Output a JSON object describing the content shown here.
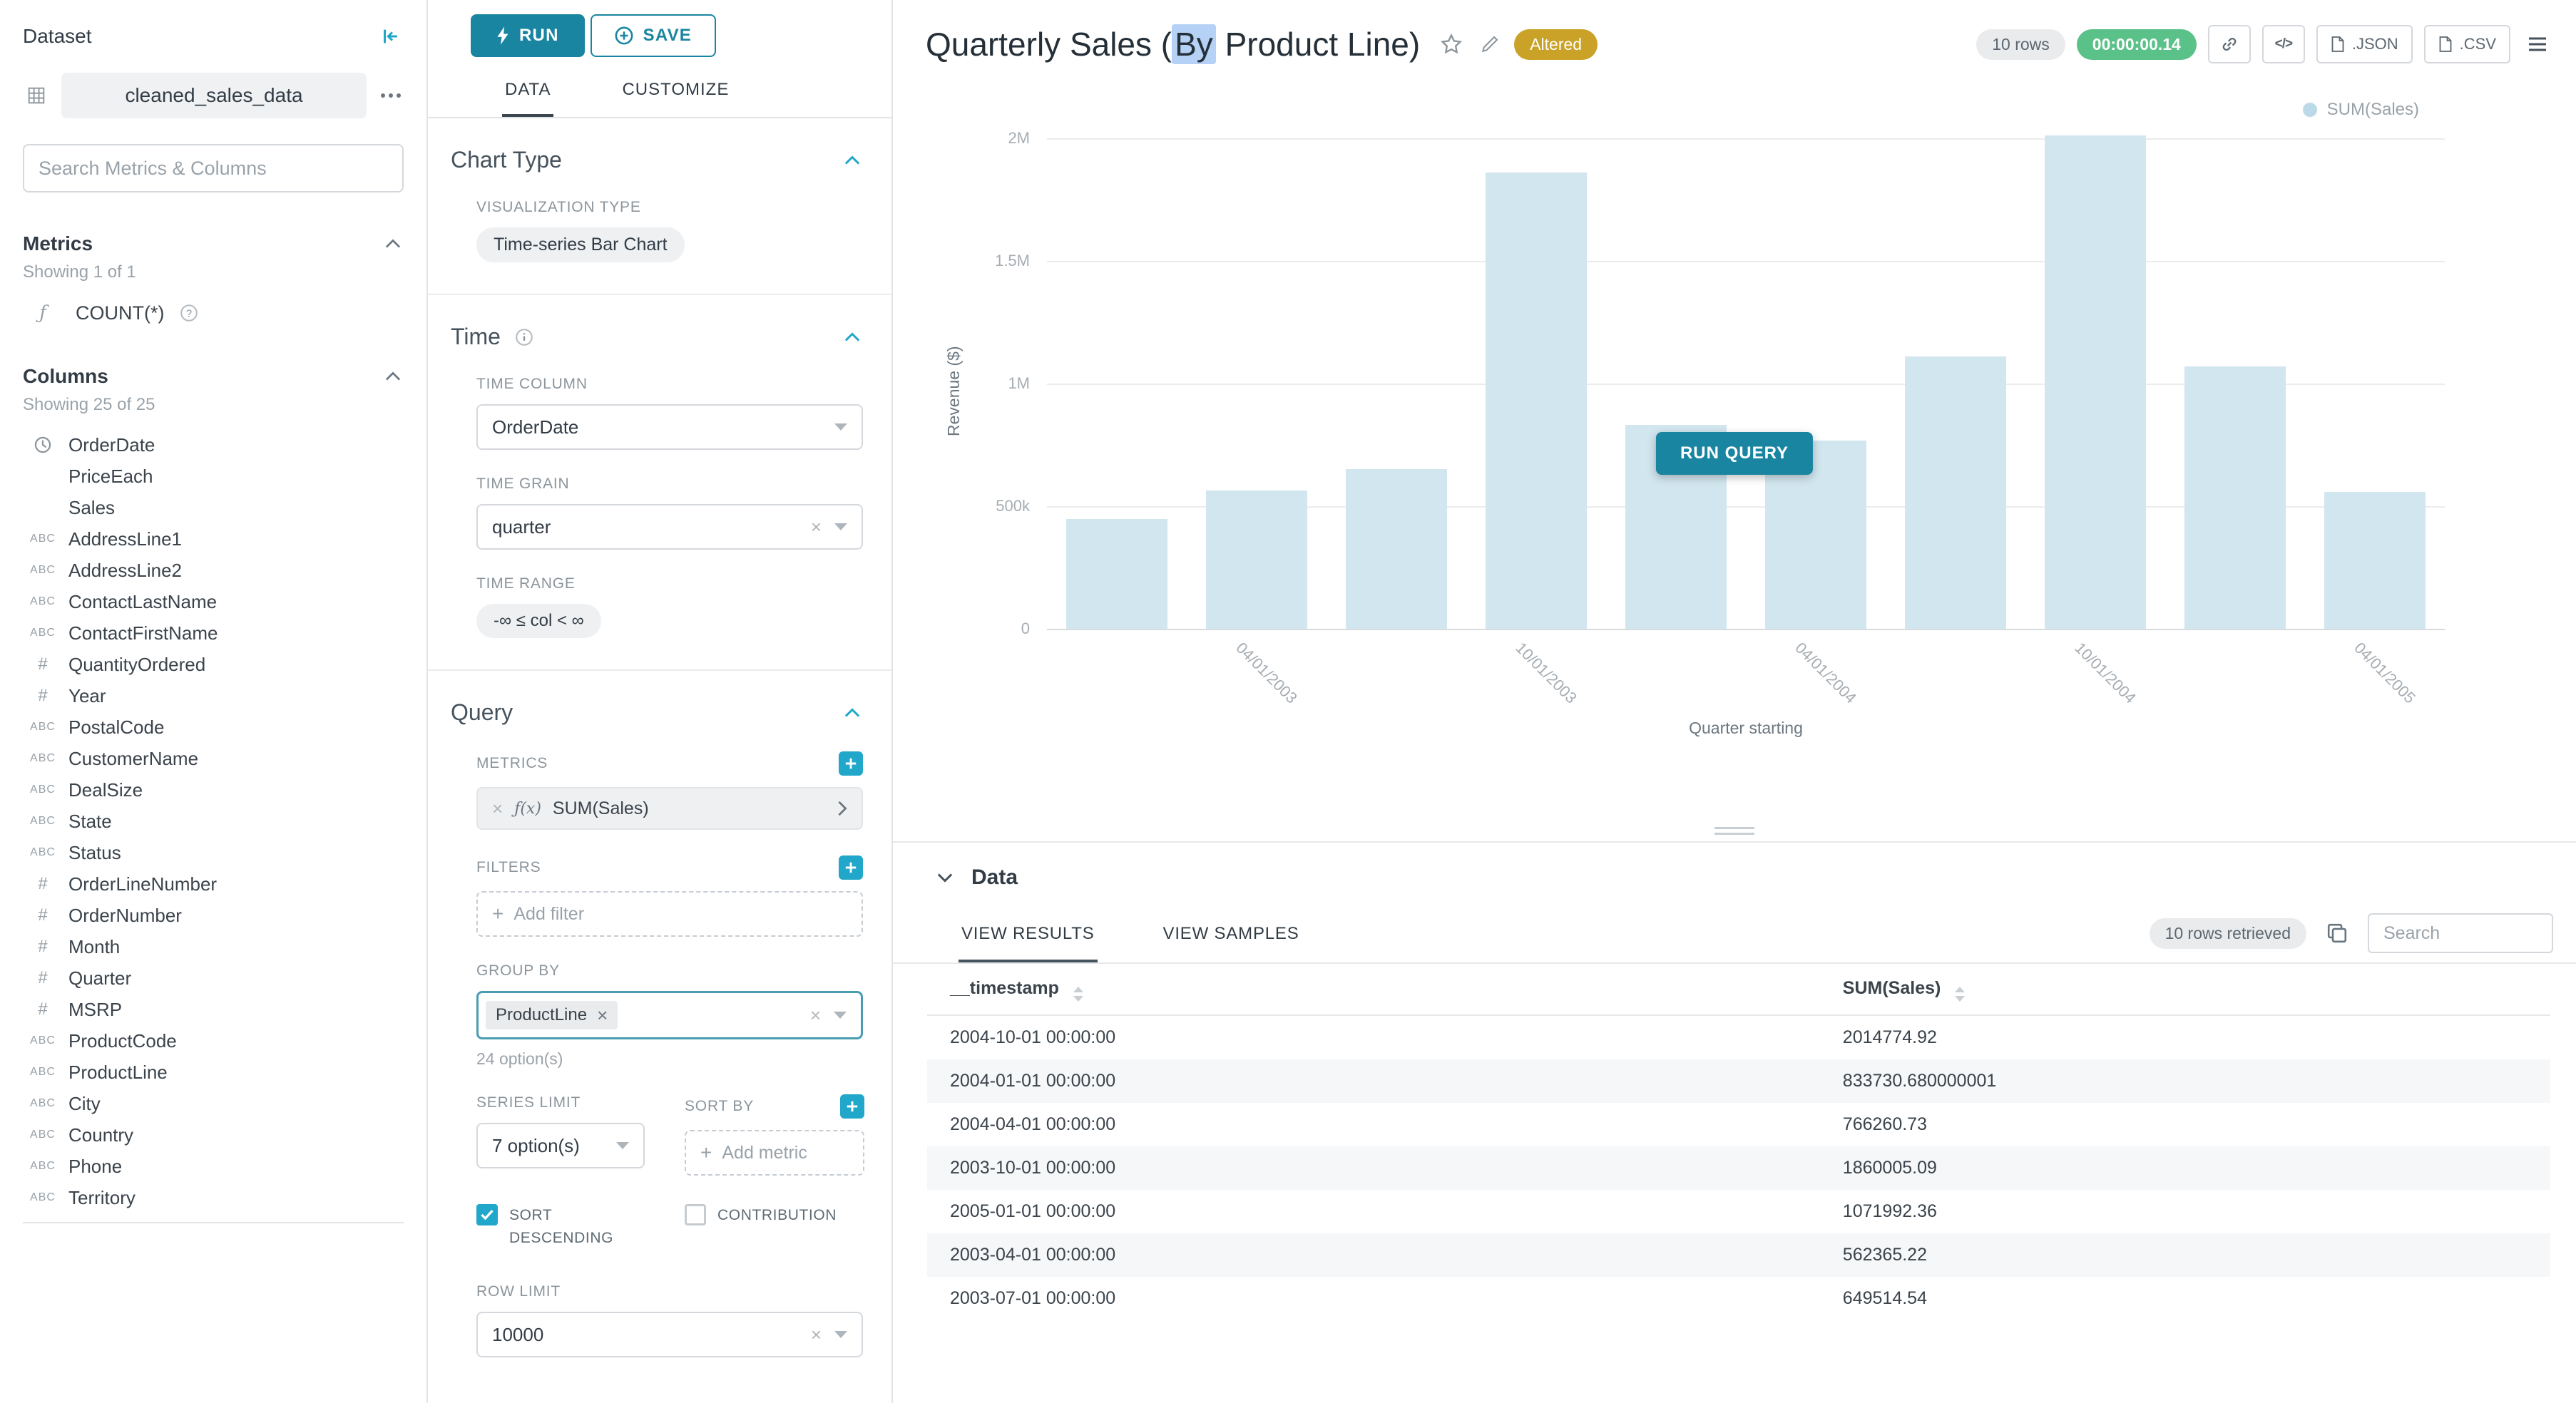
{
  "colors": {
    "primary": "#1985a0",
    "accent": "#20a7c9",
    "bar_fill": "#d2e6ef",
    "legend_dot": "#bcd9e8",
    "timer_bg": "#5ac189",
    "altered_bg": "#c9a227",
    "selection_highlight": "#b5d2f6"
  },
  "dataset_panel": {
    "title": "Dataset",
    "dataset_name": "cleaned_sales_data",
    "search_placeholder": "Search Metrics & Columns",
    "metrics": {
      "header": "Metrics",
      "showing": "Showing 1 of 1",
      "items": [
        {
          "name": "COUNT(*)",
          "icon": "function-icon"
        }
      ]
    },
    "columns": {
      "header": "Columns",
      "showing": "Showing 25 of 25",
      "items": [
        {
          "name": "OrderDate",
          "type": "time"
        },
        {
          "name": "PriceEach",
          "type": "blank"
        },
        {
          "name": "Sales",
          "type": "blank"
        },
        {
          "name": "AddressLine1",
          "type": "abc"
        },
        {
          "name": "AddressLine2",
          "type": "abc"
        },
        {
          "name": "ContactLastName",
          "type": "abc"
        },
        {
          "name": "ContactFirstName",
          "type": "abc"
        },
        {
          "name": "QuantityOrdered",
          "type": "num"
        },
        {
          "name": "Year",
          "type": "num"
        },
        {
          "name": "PostalCode",
          "type": "abc"
        },
        {
          "name": "CustomerName",
          "type": "abc"
        },
        {
          "name": "DealSize",
          "type": "abc"
        },
        {
          "name": "State",
          "type": "abc"
        },
        {
          "name": "Status",
          "type": "abc"
        },
        {
          "name": "OrderLineNumber",
          "type": "num"
        },
        {
          "name": "OrderNumber",
          "type": "num"
        },
        {
          "name": "Month",
          "type": "num"
        },
        {
          "name": "Quarter",
          "type": "num"
        },
        {
          "name": "MSRP",
          "type": "num"
        },
        {
          "name": "ProductCode",
          "type": "abc"
        },
        {
          "name": "ProductLine",
          "type": "abc"
        },
        {
          "name": "City",
          "type": "abc"
        },
        {
          "name": "Country",
          "type": "abc"
        },
        {
          "name": "Phone",
          "type": "abc"
        },
        {
          "name": "Territory",
          "type": "abc"
        }
      ]
    }
  },
  "control_panel": {
    "run_label": "RUN",
    "save_label": "SAVE",
    "tab_data": "DATA",
    "tab_customize": "CUSTOMIZE",
    "chart_type": {
      "header": "Chart Type",
      "viz_label": "VISUALIZATION TYPE",
      "viz_value": "Time-series Bar Chart"
    },
    "time": {
      "header": "Time",
      "column_label": "TIME COLUMN",
      "column_value": "OrderDate",
      "grain_label": "TIME GRAIN",
      "grain_value": "quarter",
      "range_label": "TIME RANGE",
      "range_value": "-∞ ≤ col < ∞"
    },
    "query": {
      "header": "Query",
      "metrics_label": "METRICS",
      "metric_prefix": "ƒ(x)",
      "metric_value": "SUM(Sales)",
      "filters_label": "FILTERS",
      "add_filter_label": "Add filter",
      "group_by_label": "GROUP BY",
      "group_by_tag": "ProductLine",
      "group_by_hint": "24 option(s)",
      "series_limit_label": "SERIES LIMIT",
      "series_limit_value": "7 option(s)",
      "sort_by_label": "SORT BY",
      "add_metric_label": "Add metric",
      "sort_descending_label": "SORT DESCENDING",
      "contribution_label": "CONTRIBUTION",
      "row_limit_label": "ROW LIMIT",
      "row_limit_value": "10000"
    }
  },
  "header": {
    "title_prefix": "Quarterly Sales (",
    "title_highlighted": "By",
    "title_suffix": " Product Line)",
    "altered_badge": "Altered",
    "rows_badge": "10 rows",
    "timer_badge": "00:00:00.14",
    "export_json_label": ".JSON",
    "export_csv_label": ".CSV"
  },
  "chart": {
    "run_query_label": "RUN QUERY",
    "legend_label": "SUM(Sales)"
  },
  "chart_data": {
    "type": "bar",
    "title": "Quarterly Sales (By Product Line)",
    "x": [
      "2003-01-01",
      "2003-04-01",
      "2003-07-01",
      "2003-10-01",
      "2004-01-01",
      "2004-04-01",
      "2004-07-01",
      "2004-10-01",
      "2005-01-01",
      "2005-04-01"
    ],
    "series": [
      {
        "name": "SUM(Sales)",
        "values": [
          450000,
          562365.22,
          649514.54,
          1860005.09,
          833730.68,
          766260.73,
          1110000,
          2014774.92,
          1071992.36,
          560000
        ]
      }
    ],
    "xlabel": "Quarter starting",
    "ylabel": "Revenue ($)",
    "ylim": [
      0,
      2100000
    ],
    "yticks": [
      0,
      500000,
      1000000,
      1500000,
      2000000
    ],
    "ytick_labels": [
      "0",
      "500k",
      "1M",
      "1.5M",
      "2M"
    ],
    "xtick_indices": [
      1,
      3,
      5,
      7,
      9
    ],
    "xtick_labels": [
      "04/01/2003",
      "10/01/2003",
      "04/01/2004",
      "10/01/2004",
      "04/01/2005"
    ],
    "legend": [
      "SUM(Sales)"
    ],
    "legend_position": "top-right",
    "grid": true
  },
  "data_panel": {
    "header": "Data",
    "tab_results": "VIEW RESULTS",
    "tab_samples": "VIEW SAMPLES",
    "rows_retrieved_badge": "10 rows retrieved",
    "search_placeholder": "Search",
    "table": {
      "columns": [
        "__timestamp",
        "SUM(Sales)"
      ],
      "rows": [
        [
          "2004-10-01 00:00:00",
          "2014774.92"
        ],
        [
          "2004-01-01 00:00:00",
          "833730.680000001"
        ],
        [
          "2004-04-01 00:00:00",
          "766260.73"
        ],
        [
          "2003-10-01 00:00:00",
          "1860005.09"
        ],
        [
          "2005-01-01 00:00:00",
          "1071992.36"
        ],
        [
          "2003-04-01 00:00:00",
          "562365.22"
        ],
        [
          "2003-07-01 00:00:00",
          "649514.54"
        ]
      ]
    }
  }
}
